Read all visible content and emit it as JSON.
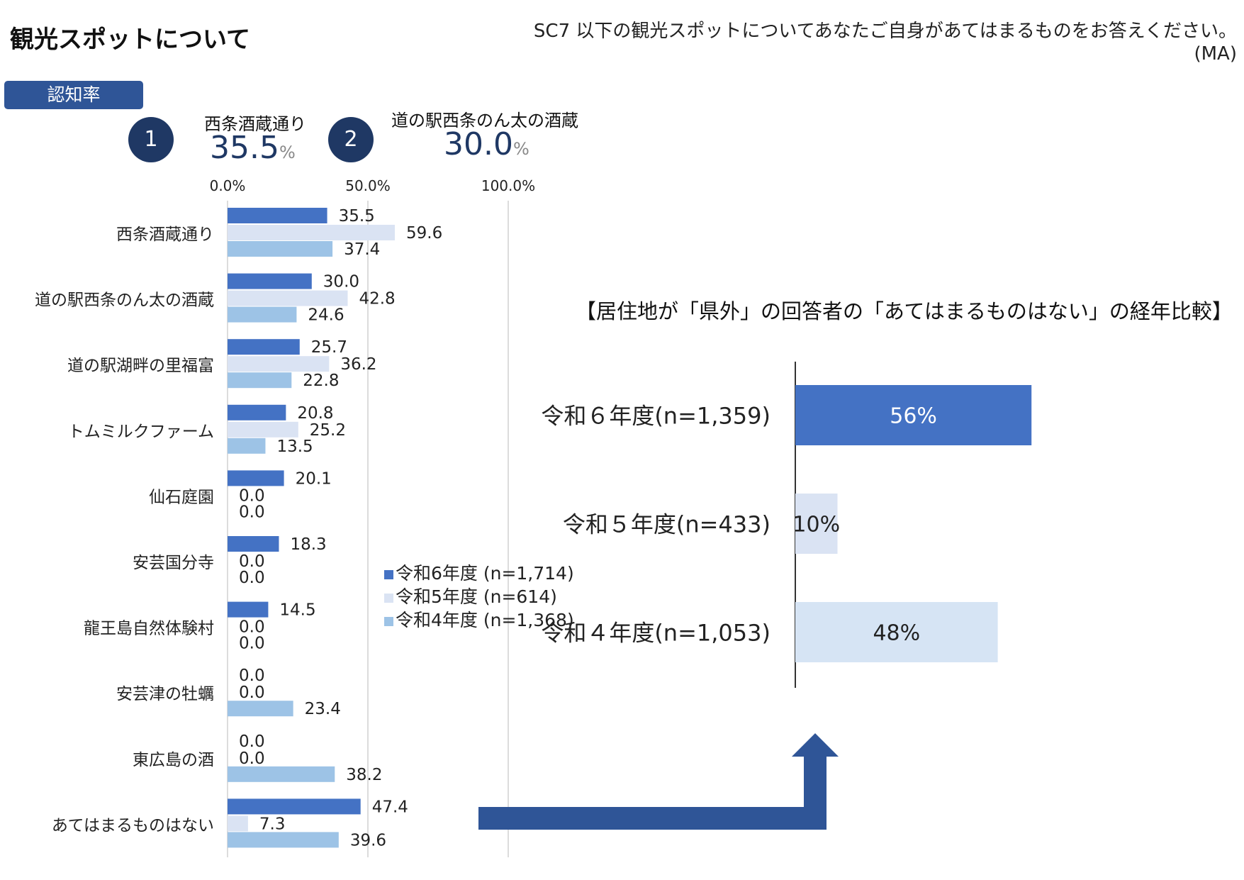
{
  "header": {
    "title": "観光スポットについて",
    "question_line1": "SC7 以下の観光スポットについてあなたご自身があてはまるものをお答えください。",
    "question_line2": "(MA)"
  },
  "tab": {
    "label": "認知率"
  },
  "top_ranks": [
    {
      "rank": "1",
      "name": "西条酒蔵通り",
      "value": "35.5",
      "unit": "%"
    },
    {
      "rank": "2",
      "name": "道の駅西条のん太の酒蔵",
      "value": "30.0",
      "unit": "%"
    }
  ],
  "colors": {
    "r6": "#4472c4",
    "r5": "#dae3f3",
    "r4": "#9dc3e6",
    "dark": "#1f3864",
    "arrow": "#2f5597"
  },
  "chart_data": [
    {
      "type": "bar",
      "orientation": "horizontal",
      "categories": [
        "西条酒蔵通り",
        "道の駅西条のん太の酒蔵",
        "道の駅湖畔の里福富",
        "トムミルクファーム",
        "仙石庭園",
        "安芸国分寺",
        "龍王島自然体験村",
        "安芸津の牡蠣",
        "東広島の酒",
        "あてはまるものはない"
      ],
      "series": [
        {
          "name": "令和6年度 (n=1,714)",
          "color": "#4472c4",
          "values": [
            35.5,
            30.0,
            25.7,
            20.8,
            20.1,
            18.3,
            14.5,
            0.0,
            0.0,
            47.4
          ]
        },
        {
          "name": "令和5年度 (n=614)",
          "color": "#dae3f3",
          "values": [
            59.6,
            42.8,
            36.2,
            25.2,
            0.0,
            0.0,
            0.0,
            0.0,
            0.0,
            7.3
          ]
        },
        {
          "name": "令和4年度 (n=1,368)",
          "color": "#9dc3e6",
          "values": [
            37.4,
            24.6,
            22.8,
            13.5,
            0.0,
            0.0,
            0.0,
            23.4,
            38.2,
            39.6
          ]
        }
      ],
      "tick_labels": [
        "0.0%",
        "50.0%",
        "100.0%"
      ],
      "xlim": [
        0,
        100
      ],
      "grid": true,
      "legend_position": "right"
    },
    {
      "type": "bar",
      "orientation": "horizontal",
      "title": "【居住地が「県外」の回答者の「あてはまるものはない」の経年比較】",
      "categories": [
        "令和６年度(n=1,359)",
        "令和５年度(n=433)",
        "令和４年度(n=1,053)"
      ],
      "values": [
        56,
        10,
        48
      ],
      "value_labels": [
        "56%",
        "10%",
        "48%"
      ],
      "colors": [
        "#4472c4",
        "#dae3f3",
        "#d6e4f4"
      ],
      "label_colors": [
        "#ffffff",
        "#222222",
        "#222222"
      ],
      "xlim": [
        0,
        100
      ]
    }
  ]
}
